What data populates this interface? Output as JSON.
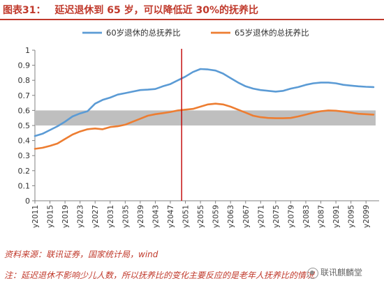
{
  "header": {
    "figure_label": "图表31：",
    "title": "延迟退休到 65 岁，可以降低近 30%的抚养比"
  },
  "footer": {
    "source": "资料来源：联讯证券，国家统计局，wind",
    "note": "注：延迟退休不影响少儿人数，所以抚养比的变化主要反应的是老年人抚养比的情况",
    "watermark": "联讯麒麟堂"
  },
  "colors": {
    "title": "#c0392b",
    "series_60": "#5b9bd5",
    "series_65": "#ed7d31",
    "band": "#bfbfbf",
    "marker": "#c00000",
    "axis": "#808080"
  },
  "chart_data": {
    "type": "line",
    "x_tick_labels": [
      "y2011",
      "y2015",
      "y2019",
      "y2023",
      "y2027",
      "y2031",
      "y2035",
      "y2039",
      "y2043",
      "y2047",
      "y2051",
      "y2055",
      "y2059",
      "y2063",
      "y2067",
      "y2071",
      "y2075",
      "y2079",
      "y2083",
      "y2087",
      "y2091",
      "y2095",
      "y2099"
    ],
    "x_range": [
      2011,
      2101
    ],
    "ylim": [
      0,
      1
    ],
    "y_ticks": [
      "0",
      "0.1",
      "0.2",
      "0.3",
      "0.4",
      "0.5",
      "0.6",
      "0.7",
      "0.8",
      "0.9",
      "1"
    ],
    "legend_position": "top",
    "series": [
      {
        "name": "60岁退休的总抚养比",
        "points": [
          [
            2011,
            0.43
          ],
          [
            2013,
            0.445
          ],
          [
            2015,
            0.47
          ],
          [
            2017,
            0.495
          ],
          [
            2019,
            0.525
          ],
          [
            2021,
            0.56
          ],
          [
            2023,
            0.58
          ],
          [
            2025,
            0.595
          ],
          [
            2027,
            0.645
          ],
          [
            2029,
            0.67
          ],
          [
            2031,
            0.685
          ],
          [
            2033,
            0.705
          ],
          [
            2035,
            0.715
          ],
          [
            2037,
            0.725
          ],
          [
            2039,
            0.735
          ],
          [
            2041,
            0.738
          ],
          [
            2043,
            0.742
          ],
          [
            2045,
            0.76
          ],
          [
            2047,
            0.775
          ],
          [
            2049,
            0.8
          ],
          [
            2051,
            0.825
          ],
          [
            2053,
            0.855
          ],
          [
            2055,
            0.875
          ],
          [
            2057,
            0.872
          ],
          [
            2059,
            0.865
          ],
          [
            2061,
            0.845
          ],
          [
            2063,
            0.815
          ],
          [
            2065,
            0.785
          ],
          [
            2067,
            0.76
          ],
          [
            2069,
            0.745
          ],
          [
            2071,
            0.735
          ],
          [
            2073,
            0.73
          ],
          [
            2075,
            0.725
          ],
          [
            2077,
            0.73
          ],
          [
            2079,
            0.745
          ],
          [
            2081,
            0.755
          ],
          [
            2083,
            0.77
          ],
          [
            2085,
            0.78
          ],
          [
            2087,
            0.785
          ],
          [
            2089,
            0.785
          ],
          [
            2091,
            0.78
          ],
          [
            2093,
            0.77
          ],
          [
            2095,
            0.765
          ],
          [
            2097,
            0.76
          ],
          [
            2099,
            0.757
          ],
          [
            2101,
            0.755
          ]
        ]
      },
      {
        "name": "65岁退休的总抚养比",
        "points": [
          [
            2011,
            0.345
          ],
          [
            2013,
            0.352
          ],
          [
            2015,
            0.365
          ],
          [
            2017,
            0.38
          ],
          [
            2019,
            0.41
          ],
          [
            2021,
            0.44
          ],
          [
            2023,
            0.46
          ],
          [
            2025,
            0.475
          ],
          [
            2027,
            0.48
          ],
          [
            2029,
            0.475
          ],
          [
            2031,
            0.49
          ],
          [
            2033,
            0.495
          ],
          [
            2035,
            0.505
          ],
          [
            2037,
            0.525
          ],
          [
            2039,
            0.545
          ],
          [
            2041,
            0.565
          ],
          [
            2043,
            0.575
          ],
          [
            2045,
            0.582
          ],
          [
            2047,
            0.59
          ],
          [
            2049,
            0.6
          ],
          [
            2051,
            0.605
          ],
          [
            2053,
            0.61
          ],
          [
            2055,
            0.625
          ],
          [
            2057,
            0.64
          ],
          [
            2059,
            0.645
          ],
          [
            2061,
            0.64
          ],
          [
            2063,
            0.625
          ],
          [
            2065,
            0.605
          ],
          [
            2067,
            0.585
          ],
          [
            2069,
            0.565
          ],
          [
            2071,
            0.555
          ],
          [
            2073,
            0.55
          ],
          [
            2075,
            0.548
          ],
          [
            2077,
            0.548
          ],
          [
            2079,
            0.55
          ],
          [
            2081,
            0.56
          ],
          [
            2083,
            0.572
          ],
          [
            2085,
            0.585
          ],
          [
            2087,
            0.595
          ],
          [
            2089,
            0.6
          ],
          [
            2091,
            0.598
          ],
          [
            2093,
            0.592
          ],
          [
            2095,
            0.585
          ],
          [
            2097,
            0.578
          ],
          [
            2099,
            0.575
          ],
          [
            2101,
            0.572
          ]
        ]
      }
    ],
    "band": {
      "y_from": 0.5,
      "y_to": 0.6
    },
    "vertical_marker_x": 2050
  }
}
